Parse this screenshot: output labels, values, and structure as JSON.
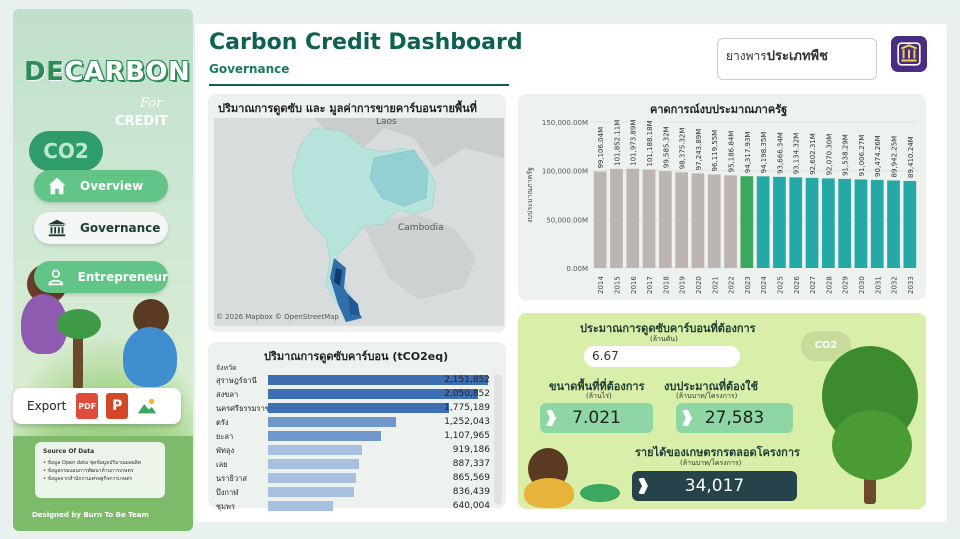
{
  "sidebar": {
    "logo_de": "DE",
    "logo_carbon": "CARBON",
    "logo_for": "For",
    "logo_credit": "CREDIT",
    "co2_label": "CO2",
    "nav": [
      {
        "label": "Overview",
        "icon": "home-icon"
      },
      {
        "label": "Governance",
        "icon": "building-icon"
      },
      {
        "label": "Entrepreneur",
        "icon": "user-icon"
      }
    ],
    "export_label": "Export",
    "export_icons": [
      "pdf-icon",
      "powerpoint-icon",
      "image-icon"
    ],
    "export_pdf_text": "PDF",
    "export_ppt_text": "P",
    "source_title": "Source Of Data",
    "source_items": [
      "• ข้อมูล Open data ชุดข้อมูลปริมาณผลผลิต",
      "• ข้อมูลกรมแผนการพัฒนาด้านการเกษตร",
      "• ข้อมูลจากสำนักงานเศรษฐกิจการเกษตร"
    ],
    "designed_by": "Designed by Burn To Be Team"
  },
  "header": {
    "title": "Carbon Credit Dashboard",
    "subtitle": "Governance",
    "filter_prefix": "ยางพาร",
    "filter_value": "ประเภทพืช"
  },
  "map_panel": {
    "title": "ปริมาณการดูดซับ และ มูลค่าการขายคาร์บอนรายพื้นที่",
    "labels": {
      "laos": "Laos",
      "cambodia": "Cambodia"
    },
    "credit": "© 2026 Mapbox © OpenStreetMap"
  },
  "table_panel": {
    "title": "ปริมาณการดูดซับคาร์บอน (tCO2eq)",
    "column_header": "จังหวัด",
    "rows": [
      {
        "province": "สุราษฎร์ธานี",
        "value": "2,151,852",
        "amount": 2151852
      },
      {
        "province": "สงขลา",
        "value": "2,050,852",
        "amount": 2050852
      },
      {
        "province": "นครศรีธรรมราช",
        "value": "1,775,189",
        "amount": 1775189
      },
      {
        "province": "ตรัง",
        "value": "1,252,043",
        "amount": 1252043
      },
      {
        "province": "ยะลา",
        "value": "1,107,965",
        "amount": 1107965
      },
      {
        "province": "พัทลุง",
        "value": "919,186",
        "amount": 919186
      },
      {
        "province": "เลย",
        "value": "887,337",
        "amount": 887337
      },
      {
        "province": "นราธิวาส",
        "value": "865,569",
        "amount": 865569
      },
      {
        "province": "บึงกาฬ",
        "value": "836,439",
        "amount": 836439
      },
      {
        "province": "ชุมพร",
        "value": "640,004",
        "amount": 640004
      }
    ],
    "colors": {
      "top": "#3f6fb3",
      "mid": "#6f97cc",
      "low": "#a7c0e0"
    }
  },
  "chart_data": {
    "type": "bar",
    "title": "คาดการณ์งบประมาณภาครัฐ",
    "ylabel": "งบประมาณภาครัฐ",
    "xlabel": "",
    "ylim": [
      0,
      150000
    ],
    "yticks": [
      "0.00M",
      "50,000.00M",
      "100,000.00M",
      "150,000.00M"
    ],
    "ytick_values": [
      0,
      50000,
      100000,
      150000
    ],
    "categories": [
      "2014",
      "2015",
      "2016",
      "2017",
      "2018",
      "2019",
      "2020",
      "2021",
      "2022",
      "2023",
      "2024",
      "2025",
      "2026",
      "2027",
      "2028",
      "2029",
      "2030",
      "2031",
      "2032",
      "2033"
    ],
    "values": [
      99106.04,
      101852.11,
      101973.89,
      101188.18,
      99585.32,
      98375.32,
      97243.89,
      96119.55,
      95186.84,
      94317.93,
      94198.35,
      93666.34,
      93134.32,
      92602.31,
      92070.3,
      91538.29,
      91006.27,
      90474.26,
      89942.25,
      89410.24
    ],
    "labels": [
      "99,106.04M",
      "101,852.11M",
      "101,973.89M",
      "101,188.18M",
      "99,585.32M",
      "98,375.32M",
      "97,243.89M",
      "96,119.55M",
      "95,186.84M",
      "94,317.93M",
      "94,198.35M",
      "93,666.34M",
      "93,134.32M",
      "92,602.31M",
      "92,070.30M",
      "91,538.29M",
      "91,006.27M",
      "90,474.26M",
      "89,942.25M",
      "89,410.24M"
    ],
    "colors": {
      "actual": "#bdb5b1",
      "current": "#3aa85e",
      "forecast": "#25a8a6"
    },
    "current_year": "2023",
    "forecast_from": "2024"
  },
  "calc_panel": {
    "title": "ประมาณการดูดซับคาร์บอนที่ต้องการ",
    "title_unit": "(ล้านตัน)",
    "input_value": "6.67",
    "area_title": "ขนาดพื้นที่ที่ต้องการ",
    "area_unit": "(ล้านไร่)",
    "area_value": "7.021",
    "budget_title": "งบประมาณที่ต้องใช้",
    "budget_unit": "(ล้านบาท/โครงการ)",
    "budget_value": "27,583",
    "income_title": "รายได้ของเกษตรกรตลอดโครงการ",
    "income_unit": "(ล้านบาท/โครงการ)",
    "income_value": "34,017",
    "co2_badge": "CO2"
  }
}
